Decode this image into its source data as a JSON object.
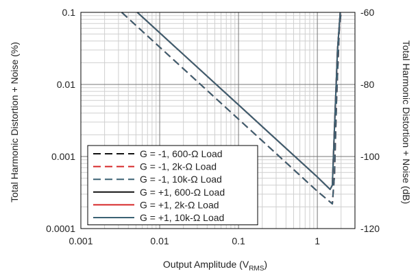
{
  "chart_data": {
    "type": "line",
    "title": "",
    "xlabel": "Output Amplitude (V",
    "xlabel_sub": "RMS",
    "xlabel_end": ")",
    "ylabel": "Total Harmonic Distortion + Noise (%)",
    "y2label": "Total Harmonic Distortion + Noise (dB)",
    "x_scale": "log",
    "y_scale": "log",
    "xlim": [
      0.001,
      3
    ],
    "ylim": [
      0.0001,
      0.1
    ],
    "y2lim": [
      -120,
      -60
    ],
    "grid": true,
    "legend_position": "lower-left",
    "x_ticks": [
      {
        "value": 0.001,
        "label": "0.001"
      },
      {
        "value": 0.01,
        "label": "0.01"
      },
      {
        "value": 0.1,
        "label": "0.1"
      },
      {
        "value": 1,
        "label": "1"
      }
    ],
    "y_ticks": [
      {
        "value": 0.1,
        "label": "0.1"
      },
      {
        "value": 0.01,
        "label": "0.01"
      },
      {
        "value": 0.001,
        "label": "0.001"
      },
      {
        "value": 0.0001,
        "label": "0.0001"
      }
    ],
    "y2_ticks": [
      {
        "value": -60,
        "label": "-60"
      },
      {
        "value": -80,
        "label": "-80"
      },
      {
        "value": -100,
        "label": "-100"
      },
      {
        "value": -120,
        "label": "-120"
      }
    ],
    "series": [
      {
        "name": "G = -1, 600-Ω Load",
        "color": "#111111",
        "dash": true,
        "x": [
          0.0033,
          0.01,
          0.1,
          1,
          1.55,
          1.65,
          1.75,
          1.9,
          2.0
        ],
        "y": [
          0.1,
          0.033,
          0.0033,
          0.00033,
          0.00022,
          0.00055,
          0.006,
          0.06,
          0.1
        ]
      },
      {
        "name": "G = -1, 2k-Ω Load",
        "color": "#d62728",
        "dash": true,
        "x": [
          0.0033,
          0.01,
          0.1,
          1,
          1.55,
          1.65,
          1.75,
          1.9,
          2.0
        ],
        "y": [
          0.1,
          0.033,
          0.0033,
          0.00033,
          0.00022,
          0.00055,
          0.006,
          0.06,
          0.1
        ]
      },
      {
        "name": "G = -1, 10k-Ω Load",
        "color": "#3a6173",
        "dash": true,
        "x": [
          0.0033,
          0.01,
          0.1,
          1,
          1.55,
          1.65,
          1.75,
          1.9,
          2.0
        ],
        "y": [
          0.1,
          0.033,
          0.0033,
          0.00033,
          0.00022,
          0.00055,
          0.006,
          0.06,
          0.1
        ]
      },
      {
        "name": "G = +1, 600-Ω Load",
        "color": "#111111",
        "dash": false,
        "x": [
          0.0052,
          0.01,
          0.1,
          1,
          1.45,
          1.55,
          1.65,
          1.8,
          1.95
        ],
        "y": [
          0.1,
          0.052,
          0.0052,
          0.00052,
          0.00035,
          0.0004,
          0.0025,
          0.03,
          0.1
        ]
      },
      {
        "name": "G = +1, 2k-Ω Load",
        "color": "#d62728",
        "dash": false,
        "x": [
          0.0052,
          0.01,
          0.1,
          1,
          1.45,
          1.55,
          1.65,
          1.8,
          1.95
        ],
        "y": [
          0.1,
          0.052,
          0.0052,
          0.00052,
          0.00035,
          0.0004,
          0.0025,
          0.03,
          0.1
        ]
      },
      {
        "name": "G = +1, 10k-Ω Load",
        "color": "#3a6173",
        "dash": false,
        "x": [
          0.0052,
          0.01,
          0.1,
          1,
          1.45,
          1.55,
          1.65,
          1.8,
          1.95
        ],
        "y": [
          0.1,
          0.052,
          0.0052,
          0.00052,
          0.00035,
          0.0004,
          0.0025,
          0.03,
          0.1
        ]
      }
    ]
  }
}
